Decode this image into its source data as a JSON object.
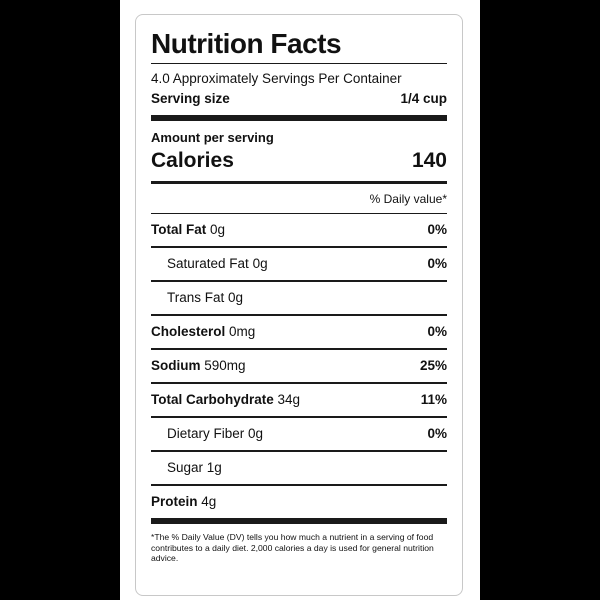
{
  "label": {
    "title": "Nutrition Facts",
    "servings_per_container": "4.0 Approximately Servings Per Container",
    "serving_size_label": "Serving size",
    "serving_size_value": "1/4 cup",
    "amount_per_serving": "Amount per serving",
    "calories_label": "Calories",
    "calories_value": "140",
    "daily_value_header": "% Daily value*",
    "nutrients": [
      {
        "name": "Total Fat",
        "amount": "0g",
        "dv": "0%"
      },
      {
        "name": "Saturated Fat",
        "amount": "0g",
        "dv": "0%"
      },
      {
        "name": "Trans Fat",
        "amount": "0g",
        "dv": ""
      },
      {
        "name": "Cholesterol",
        "amount": "0mg",
        "dv": "0%"
      },
      {
        "name": "Sodium",
        "amount": "590mg",
        "dv": "25%"
      },
      {
        "name": "Total Carbohydrate",
        "amount": "34g",
        "dv": "11%"
      },
      {
        "name": "Dietary Fiber",
        "amount": "0g",
        "dv": "0%"
      },
      {
        "name": "Sugar",
        "amount": "1g",
        "dv": ""
      },
      {
        "name": "Protein",
        "amount": "4g",
        "dv": ""
      }
    ],
    "footnote": "*The % Daily Value (DV) tells you how much a nutrient in a serving of food contributes to a daily diet. 2,000 calories a day is used for general nutrition advice."
  }
}
